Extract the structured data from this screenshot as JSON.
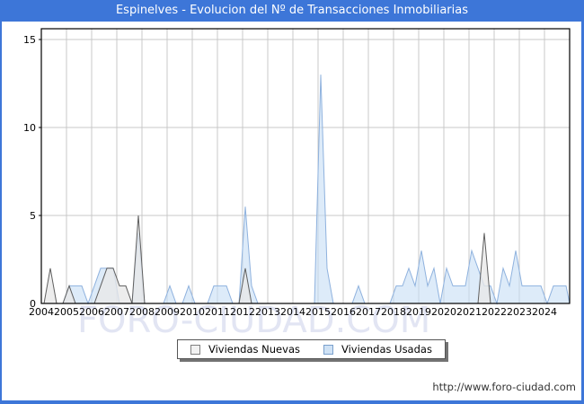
{
  "window": {
    "title": "Espinelves - Evolucion del Nº de Transacciones Inmobiliarias"
  },
  "watermark": {
    "text": "FORO-CIUDAD.COM"
  },
  "footer": {
    "url": "http://www.foro-ciudad.com"
  },
  "colors": {
    "titlebar_bg": "#3d76d8",
    "titlebar_text": "#ffffff",
    "frame_border": "#3d76d8",
    "plot_border": "#000000",
    "gridline": "#c9c9c9",
    "watermark_text": "#e2e5f3",
    "url_text": "#333333"
  },
  "chart_data": {
    "type": "area",
    "title": "Espinelves - Evolucion del Nº de Transacciones Inmobiliarias",
    "x_unit": "quarter",
    "years": [
      2004,
      2005,
      2006,
      2007,
      2008,
      2009,
      2010,
      2011,
      2012,
      2013,
      2014,
      2015,
      2016,
      2017,
      2018,
      2019,
      2020,
      2021,
      2022,
      2023,
      2024
    ],
    "quarters_per_year": 4,
    "ylim": [
      0,
      15
    ],
    "yticks": [
      0,
      5,
      10,
      15
    ],
    "grid": true,
    "legend_position": "bottom-center",
    "series": [
      {
        "name": "Viviendas Nuevas",
        "line_color": "#5f5f5f",
        "fill_color": "rgba(232,232,232,0.78)",
        "swatch_fill": "#f2f2f2",
        "swatch_border": "#808080",
        "values": [
          0,
          2,
          0,
          0,
          1,
          0,
          0,
          0,
          0,
          1,
          2,
          2,
          1,
          1,
          0,
          5,
          0,
          0,
          0,
          0,
          0,
          0,
          0,
          0,
          0,
          0,
          0,
          0,
          0,
          0,
          0,
          0,
          2,
          0,
          0,
          0,
          0,
          0,
          0,
          0,
          0,
          0,
          0,
          0,
          0,
          0,
          0,
          0,
          0,
          0,
          0,
          0,
          0,
          0,
          0,
          0,
          0,
          0,
          0,
          0,
          0,
          0,
          0,
          0,
          0,
          0,
          0,
          0,
          0,
          0,
          4,
          0,
          0,
          0,
          0,
          0,
          0,
          0,
          0,
          0,
          0,
          0,
          0,
          0
        ]
      },
      {
        "name": "Viviendas Usadas",
        "line_color": "#8fb2de",
        "fill_color": "rgba(199,221,245,0.6)",
        "swatch_fill": "#cfe2f5",
        "swatch_border": "#7aa0cc",
        "values": [
          0,
          0,
          0,
          0,
          1,
          1,
          1,
          0,
          1,
          2,
          2,
          2,
          0,
          0,
          0,
          4,
          0,
          0,
          0,
          0,
          1,
          0,
          0,
          1,
          0,
          0,
          0,
          1,
          1,
          1,
          0,
          0,
          5.5,
          1,
          0,
          0,
          0,
          0,
          0,
          0,
          0,
          0,
          0,
          0,
          13,
          2,
          0,
          0,
          0,
          0,
          1,
          0,
          0,
          0,
          0,
          0,
          1,
          1,
          2,
          1,
          3,
          1,
          2,
          0,
          2,
          1,
          1,
          1,
          3,
          2,
          1,
          1,
          0,
          2,
          1,
          3,
          1,
          1,
          1,
          1,
          0,
          1,
          1,
          1
        ]
      }
    ]
  }
}
